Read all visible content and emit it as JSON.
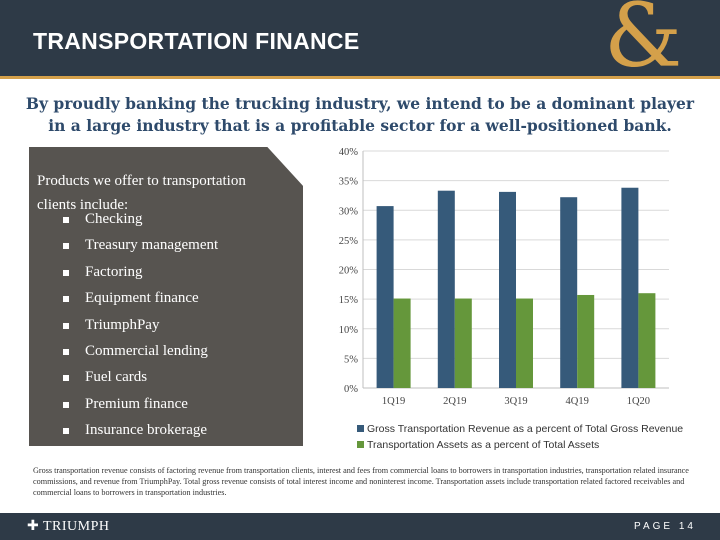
{
  "header": {
    "title": "TRANSPORTATION FINANCE",
    "logo_symbol": "&"
  },
  "subtitle": "By proudly banking the trucking industry, we intend to be a dominant player in a large industry that is a profitable sector for a well-positioned bank.",
  "products": {
    "intro": "Products we offer to transportation clients include:",
    "items": [
      "Checking",
      "Treasury management",
      "Factoring",
      "Equipment finance",
      "TriumphPay",
      "Commercial lending",
      "Fuel cards",
      "Premium finance",
      "Insurance brokerage"
    ]
  },
  "chart_data": {
    "type": "bar",
    "categories": [
      "1Q19",
      "2Q19",
      "3Q19",
      "4Q19",
      "1Q20"
    ],
    "series": [
      {
        "name": "Gross Transportation Revenue as a percent of Total Gross Revenue",
        "color": "#365a7a",
        "values": [
          30.7,
          33.3,
          33.1,
          32.2,
          33.8
        ]
      },
      {
        "name": "Transportation Assets as a percent of Total Assets",
        "color": "#65973b",
        "values": [
          15.1,
          15.1,
          15.1,
          15.7,
          16.0
        ]
      }
    ],
    "ylim": [
      0,
      40
    ],
    "yticks": [
      "0%",
      "5%",
      "10%",
      "15%",
      "20%",
      "25%",
      "30%",
      "35%",
      "40%"
    ],
    "grid": true,
    "legend": "bottom"
  },
  "note": "Gross transportation revenue consists of factoring revenue from transportation clients, interest and fees from commercial loans to borrowers in transportation industries, transportation related insurance commissions, and revenue from TriumphPay. Total gross revenue consists of total interest income and noninterest income. Transportation assets include transportation related factored receivables and commercial loans to borrowers in transportation industries.",
  "footer": {
    "logo": "TRIUMPH",
    "page": "PAGE 14"
  }
}
